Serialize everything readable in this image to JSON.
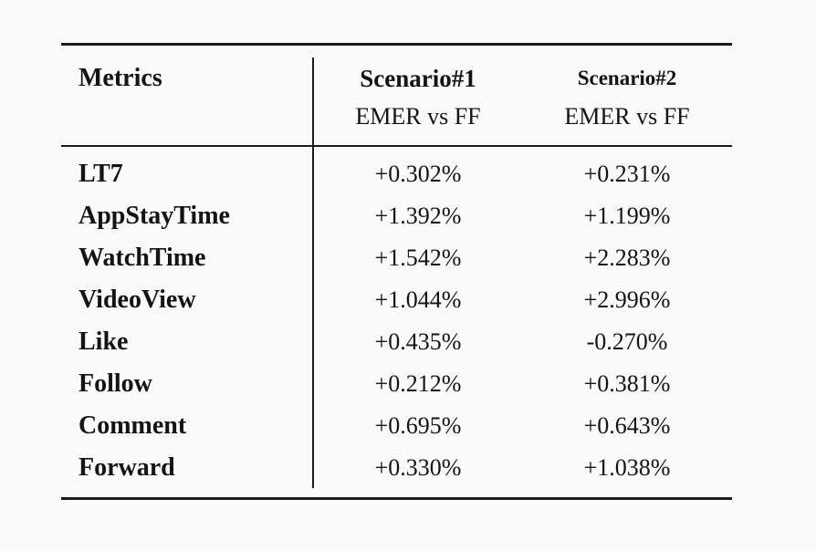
{
  "page": {
    "background_color": "#fafafa",
    "rule_color": "#1c1c1c",
    "text_color": "#141414"
  },
  "table": {
    "columns": [
      {
        "title": "Metrics"
      },
      {
        "title": "Scenario#1",
        "subtitle": "EMER vs FF"
      },
      {
        "title": "Scenario#2",
        "subtitle": "EMER vs FF"
      }
    ],
    "rows": [
      {
        "metric": "LT7",
        "scenario1": "+0.302%",
        "scenario2": "+0.231%"
      },
      {
        "metric": "AppStayTime",
        "scenario1": "+1.392%",
        "scenario2": "+1.199%"
      },
      {
        "metric": "WatchTime",
        "scenario1": "+1.542%",
        "scenario2": "+2.283%"
      },
      {
        "metric": "VideoView",
        "scenario1": "+1.044%",
        "scenario2": "+2.996%"
      },
      {
        "metric": "Like",
        "scenario1": "+0.435%",
        "scenario2": "-0.270%"
      },
      {
        "metric": "Follow",
        "scenario1": "+0.212%",
        "scenario2": "+0.381%"
      },
      {
        "metric": "Comment",
        "scenario1": "+0.695%",
        "scenario2": "+0.643%"
      },
      {
        "metric": "Forward",
        "scenario1": "+0.330%",
        "scenario2": "+1.038%"
      }
    ]
  }
}
